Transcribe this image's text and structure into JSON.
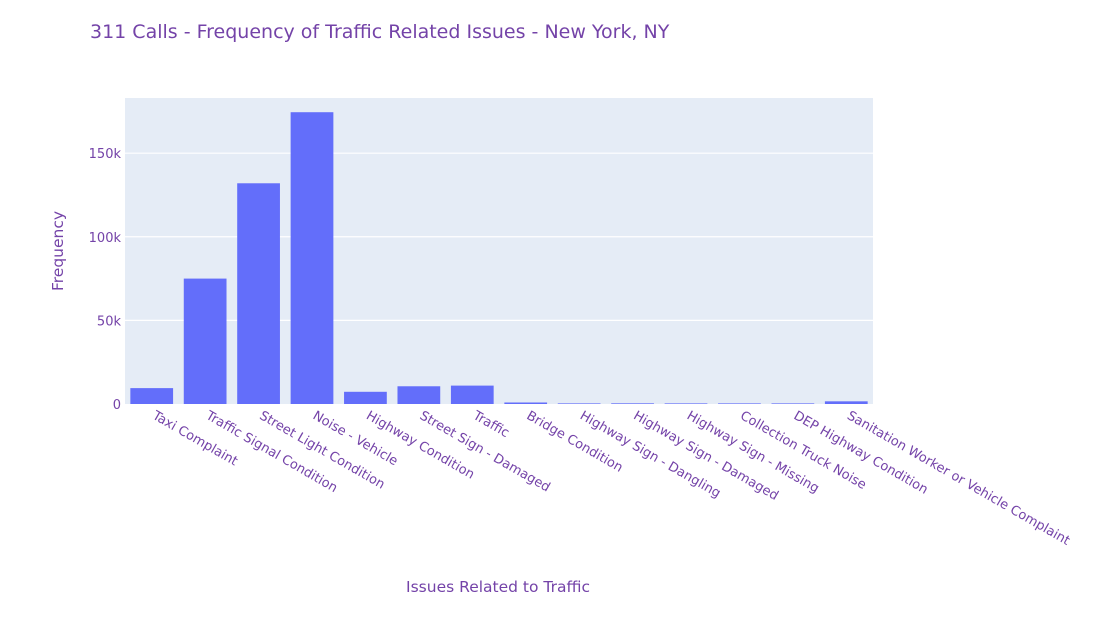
{
  "colors": {
    "bar": "#636efa",
    "plot_bg": "#e5ecf6",
    "grid": "#ffffff",
    "text": "#7443a8",
    "page_bg": "#ffffff"
  },
  "chart_data": {
    "type": "bar",
    "title": "311 Calls - Frequency of Traffic Related Issues - New York, NY",
    "xlabel": "Issues Related to Traffic",
    "ylabel": "Frequency",
    "ylim": [
      0,
      183000
    ],
    "yticks": [
      {
        "value": 0,
        "label": "0"
      },
      {
        "value": 50000,
        "label": "50k"
      },
      {
        "value": 100000,
        "label": "100k"
      },
      {
        "value": 150000,
        "label": "150k"
      }
    ],
    "grid": true,
    "categories": [
      "Taxi Complaint",
      "Traffic Signal Condition",
      "Street Light Condition",
      "Noise - Vehicle",
      "Highway Condition",
      "Street Sign - Damaged",
      "Traffic",
      "Bridge Condition",
      "Highway Sign - Dangling",
      "Highway Sign - Damaged",
      "Highway Sign - Missing",
      "Collection Truck Noise",
      "DEP Highway Condition",
      "Sanitation Worker or Vehicle Complaint"
    ],
    "values": [
      9500,
      75000,
      132000,
      174500,
      7300,
      10600,
      11000,
      900,
      150,
      400,
      200,
      80,
      50,
      1600
    ]
  }
}
